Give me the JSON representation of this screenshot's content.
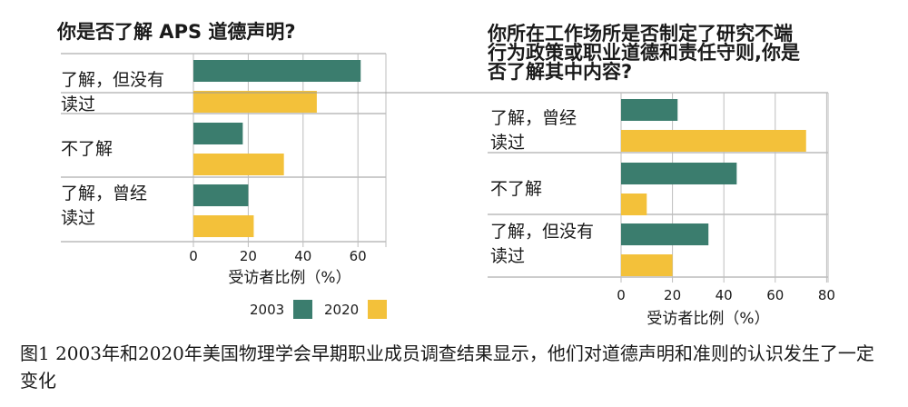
{
  "colors": {
    "s2003": "#3b7d6e",
    "s2020": "#f3c13a"
  },
  "chart_data": [
    {
      "type": "bar",
      "orientation": "horizontal",
      "title": "你是否了解 APS 道德声明?",
      "categories": [
        [
          "了解，但没有",
          "读过"
        ],
        [
          "不了解"
        ],
        [
          "了解，曾经",
          "读过"
        ]
      ],
      "series": [
        {
          "name": "2003",
          "values": [
            61,
            18,
            20
          ]
        },
        {
          "name": "2020",
          "values": [
            45,
            33,
            22
          ]
        }
      ],
      "xlabel": "受访者比例（%）",
      "xlim": [
        0,
        70
      ],
      "xticks": [
        0,
        20,
        40,
        60
      ],
      "legend": {
        "position": "bottom",
        "labels": [
          "2003",
          "2020"
        ]
      }
    },
    {
      "type": "bar",
      "orientation": "horizontal",
      "title": [
        "你所在工作场所是否制定了研究不端",
        "行为政策或职业道德和责任守则,你是",
        "否了解其中内容?"
      ],
      "categories": [
        [
          "了解，曾经",
          "读过"
        ],
        [
          "不了解"
        ],
        [
          "了解，但没有",
          "读过"
        ]
      ],
      "series": [
        {
          "name": "2003",
          "values": [
            22,
            45,
            34
          ]
        },
        {
          "name": "2020",
          "values": [
            72,
            10,
            20
          ]
        }
      ],
      "xlabel": "受访者比例（%）",
      "xlim": [
        0,
        80
      ],
      "xticks": [
        0,
        20,
        40,
        60,
        80
      ]
    }
  ],
  "caption": "图1 2003年和2020年美国物理学会早期职业成员调查结果显示，他们对道德声明和准则的认识发生了一定变化"
}
